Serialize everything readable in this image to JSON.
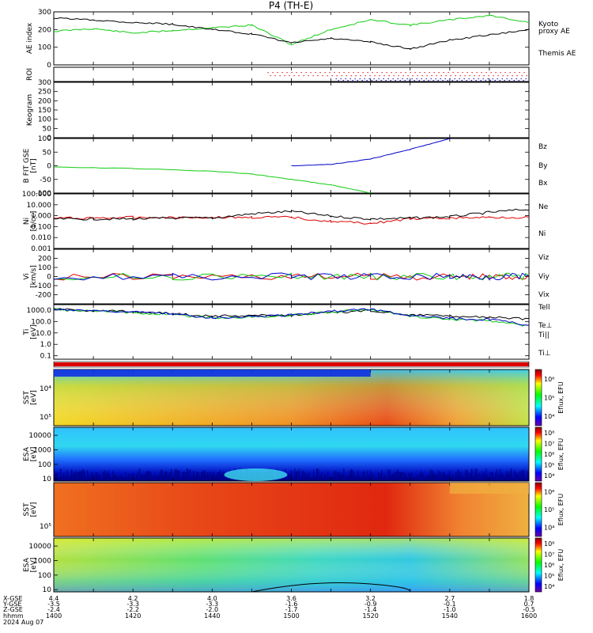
{
  "title": "P4 (TH-E)",
  "date": "2024 Aug 07",
  "colors": {
    "black": "#000000",
    "green": "#11cc11",
    "red": "#dd0000",
    "blue": "#0000cc"
  },
  "chart_data": [
    {
      "type": "line",
      "ylabel": "AE index",
      "yticks": [
        "0",
        "100",
        "200",
        "300"
      ],
      "ylim": [
        0,
        300
      ],
      "x": [
        1400,
        1410,
        1420,
        1430,
        1440,
        1450,
        1500,
        1510,
        1520,
        1530,
        1540,
        1550,
        1600
      ],
      "series": [
        {
          "name": "Kyoto proxy AE",
          "color": "green",
          "values": [
            190,
            205,
            180,
            195,
            210,
            225,
            115,
            200,
            255,
            225,
            255,
            280,
            240
          ]
        },
        {
          "name": "Themis AE",
          "color": "black",
          "values": [
            265,
            255,
            240,
            230,
            200,
            175,
            125,
            150,
            130,
            90,
            140,
            170,
            200
          ]
        }
      ]
    },
    {
      "type": "scatter",
      "ylabel": "ROI",
      "yticks": [],
      "note": "dotted tracks after 15:00"
    },
    {
      "type": "line",
      "ylabel": "Keogram",
      "yticks": [
        "0",
        "50",
        "100",
        "150",
        "200",
        "250",
        "300"
      ],
      "ylim": [
        0,
        300
      ],
      "series": []
    },
    {
      "type": "line",
      "ylabel": "B FIT GSE [nT]",
      "yticks": [
        "-100",
        "-50",
        "0",
        "50",
        "100"
      ],
      "ylim": [
        -100,
        100
      ],
      "x": [
        1400,
        1420,
        1440,
        1450,
        1500,
        1510,
        1520,
        1530,
        1540,
        1550
      ],
      "series": [
        {
          "name": "Bz",
          "color": "red",
          "values": [
            null,
            null,
            null,
            null,
            null,
            null,
            null,
            null,
            null,
            null
          ]
        },
        {
          "name": "By",
          "color": "green",
          "values": [
            -5,
            -10,
            -20,
            -30,
            -50,
            -70,
            -100,
            null,
            null,
            null
          ]
        },
        {
          "name": "Bx",
          "color": "blue",
          "values": [
            null,
            null,
            null,
            null,
            0,
            5,
            25,
            60,
            100,
            null
          ]
        }
      ]
    },
    {
      "type": "line",
      "ylabel": "Ni [1/cc]",
      "yticks": [
        "0.001",
        "0.010",
        "0.100",
        "1.000",
        "10.000",
        "100.000"
      ],
      "ylim": [
        0.001,
        100
      ],
      "log": true,
      "x": [
        1400,
        1410,
        1420,
        1430,
        1440,
        1450,
        1500,
        1510,
        1520,
        1530,
        1540,
        1550,
        1600
      ],
      "series": [
        {
          "name": "Ne",
          "color": "red",
          "values": [
            0.6,
            0.6,
            0.7,
            0.7,
            0.7,
            0.7,
            0.7,
            0.3,
            0.2,
            0.5,
            0.6,
            0.7,
            0.7
          ]
        },
        {
          "name": "Ni",
          "color": "black",
          "values": [
            0.5,
            0.5,
            0.5,
            0.6,
            0.6,
            1.5,
            2.5,
            0.9,
            0.5,
            0.6,
            0.8,
            2.0,
            4.0
          ]
        }
      ]
    },
    {
      "type": "line",
      "ylabel": "Vi [km/s]",
      "yticks": [
        "-200",
        "-100",
        "0",
        "100",
        "200"
      ],
      "ylim": [
        -300,
        300
      ],
      "series": [
        {
          "name": "Viz",
          "color": "red",
          "values": [
            0,
            0,
            0,
            0,
            0,
            0,
            0
          ]
        },
        {
          "name": "Viy",
          "color": "green",
          "values": [
            0,
            0,
            0,
            0,
            0,
            0,
            0
          ]
        },
        {
          "name": "Vix",
          "color": "blue",
          "values": [
            0,
            0,
            0,
            0,
            0,
            0,
            0
          ]
        }
      ]
    },
    {
      "type": "line",
      "ylabel": "Ti [eV]",
      "yticks": [
        "0.1",
        "1.0",
        "10.0",
        "100.0",
        "1000.0"
      ],
      "ylim": [
        0.05,
        3000
      ],
      "log": true,
      "x": [
        1400,
        1410,
        1420,
        1430,
        1440,
        1450,
        1500,
        1510,
        1520,
        1530,
        1540,
        1550,
        1600
      ],
      "series": [
        {
          "name": "Tell",
          "color": "black",
          "values": [
            1200,
            900,
            700,
            500,
            300,
            350,
            350,
            600,
            900,
            400,
            300,
            250,
            150
          ]
        },
        {
          "name": "Te⊥",
          "color": "red",
          "values": [
            null,
            null,
            null,
            null,
            null,
            null,
            null,
            null,
            null,
            null,
            null,
            null,
            null
          ]
        },
        {
          "name": "Ti||",
          "color": "green",
          "values": [
            1100,
            800,
            600,
            400,
            200,
            250,
            350,
            700,
            1100,
            300,
            150,
            120,
            40
          ]
        },
        {
          "name": "Ti⊥",
          "color": "blue",
          "values": [
            1200,
            900,
            700,
            450,
            220,
            270,
            380,
            800,
            1200,
            350,
            180,
            150,
            50
          ]
        }
      ]
    },
    {
      "type": "heatmap",
      "ylabel": "SST [eV]",
      "yticks": [
        "10⁴",
        "10⁵"
      ],
      "colorbar": {
        "label": "Eflux, EFU",
        "ticks": [
          "10⁴",
          "10⁵",
          "10⁶"
        ]
      }
    },
    {
      "type": "heatmap",
      "ylabel": "ESA [eV]",
      "yticks": [
        "10",
        "100",
        "1000",
        "10000"
      ],
      "colorbar": {
        "label": "Eflux, EFU",
        "ticks": [
          "10⁴",
          "10⁵",
          "10⁶",
          "10⁷",
          "10⁸"
        ]
      }
    },
    {
      "type": "heatmap",
      "ylabel": "SST [eV]",
      "yticks": [
        "10⁵"
      ],
      "colorbar": {
        "label": "Eflux, EFU",
        "ticks": [
          "10⁴",
          "10⁵",
          "10⁶"
        ]
      }
    },
    {
      "type": "heatmap",
      "ylabel": "ESA [eV]",
      "yticks": [
        "10",
        "100",
        "1000",
        "10000"
      ],
      "colorbar": {
        "label": "Eflux, EFU",
        "ticks": [
          "10⁴",
          "10⁵",
          "10⁶",
          "10⁷",
          "10⁸"
        ]
      }
    }
  ],
  "time_axis": {
    "row_labels": [
      "X-GSE",
      "Y-GSE",
      "Z-GSE",
      "hhmm",
      "2024 Aug 07"
    ],
    "ticks": [
      {
        "x_gse": "4.4",
        "y_gse": "-3.5",
        "z_gse": "-2.4",
        "hhmm": "1400"
      },
      {
        "x_gse": "4.2",
        "y_gse": "-3.3",
        "z_gse": "-2.2",
        "hhmm": "1420"
      },
      {
        "x_gse": "4.0",
        "y_gse": "-3.3",
        "z_gse": "-2.0",
        "hhmm": "1440"
      },
      {
        "x_gse": "3.6",
        "y_gse": "-1.6",
        "z_gse": "-1.7",
        "hhmm": "1500"
      },
      {
        "x_gse": "3.2",
        "y_gse": "-0.9",
        "z_gse": "-1.4",
        "hhmm": "1520"
      },
      {
        "x_gse": "2.7",
        "y_gse": "-0.1",
        "z_gse": "-1.0",
        "hhmm": "1540"
      },
      {
        "x_gse": "1.8",
        "y_gse": "0.7",
        "z_gse": "-0.5",
        "hhmm": "1600"
      }
    ]
  },
  "legends": {
    "ae": [
      {
        "text": "Kyoto",
        "color": "green"
      },
      {
        "text": "proxy AE",
        "color": "green"
      },
      {
        "text": "Themis AE",
        "color": "black"
      }
    ],
    "b": [
      {
        "text": "Bz",
        "color": "red"
      },
      {
        "text": "By",
        "color": "green"
      },
      {
        "text": "Bx",
        "color": "blue"
      }
    ],
    "n": [
      {
        "text": "Ne",
        "color": "red"
      },
      {
        "text": "Ni",
        "color": "black"
      }
    ],
    "v": [
      {
        "text": "Viz",
        "color": "red"
      },
      {
        "text": "Viy",
        "color": "green"
      },
      {
        "text": "Vix",
        "color": "blue"
      }
    ],
    "t": [
      {
        "text": "Tell",
        "color": "black"
      },
      {
        "text": "Te⊥",
        "color": "red"
      },
      {
        "text": "Ti||",
        "color": "green"
      },
      {
        "text": "Ti⊥",
        "color": "blue"
      }
    ]
  }
}
